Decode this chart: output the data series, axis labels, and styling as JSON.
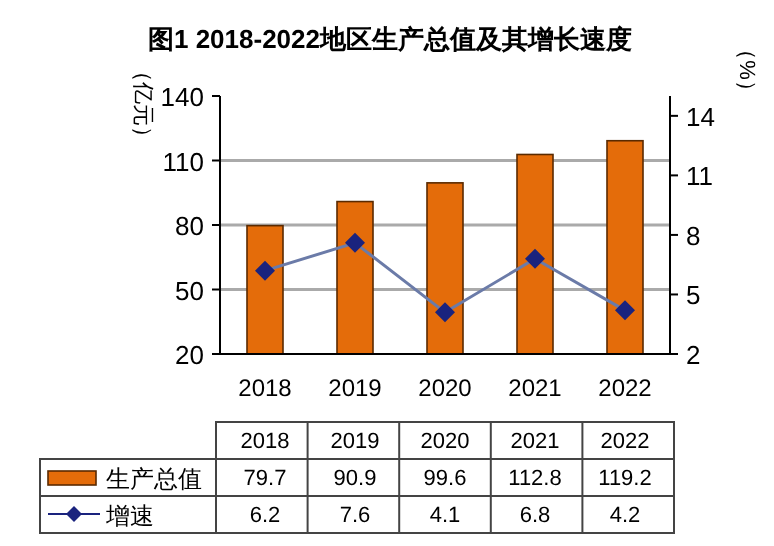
{
  "chart_data": {
    "type": "bar",
    "title": "图1 2018-2022地区生产总值及其增长速度",
    "ylabel": "（亿元）",
    "y2label": "（%）",
    "categories": [
      "2018",
      "2019",
      "2020",
      "2021",
      "2022"
    ],
    "series": [
      {
        "name": "生产总值",
        "color": "#e46c0a",
        "values": [
          79.7,
          90.9,
          99.6,
          112.8,
          119.2
        ]
      },
      {
        "name": "增速",
        "type": "line",
        "axis": "y2",
        "color": "#1a237e",
        "marker": "diamond",
        "values": [
          6.2,
          7.6,
          4.1,
          6.8,
          4.2
        ]
      }
    ],
    "ylim": [
      20,
      140
    ],
    "yticks": [
      20,
      50,
      80,
      110,
      140
    ],
    "y2lim": [
      2,
      15
    ],
    "y2ticks": [
      2,
      5,
      8,
      11,
      14
    ],
    "grid": "y",
    "legend": "bottom",
    "data_labels": true
  }
}
